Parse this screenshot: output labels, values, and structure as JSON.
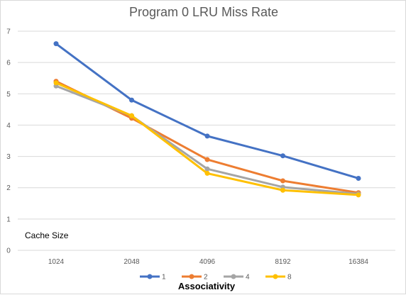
{
  "chart_data": {
    "type": "line",
    "title": "Program 0 LRU Miss Rate",
    "xlabel": "Associativity",
    "ylabel": "",
    "annotation": "Cache Size",
    "categories": [
      "1024",
      "2048",
      "4096",
      "8192",
      "16384"
    ],
    "ylim": [
      0,
      7
    ],
    "yticks": [
      "0",
      "1",
      "2",
      "3",
      "4",
      "5",
      "6",
      "7"
    ],
    "grid": true,
    "legend_position": "bottom",
    "series": [
      {
        "name": "1",
        "color": "#4472C4",
        "values": [
          6.6,
          4.8,
          3.65,
          3.02,
          2.3
        ]
      },
      {
        "name": "2",
        "color": "#ED7D31",
        "values": [
          5.4,
          4.22,
          2.9,
          2.22,
          1.84
        ]
      },
      {
        "name": "4",
        "color": "#A5A5A5",
        "values": [
          5.25,
          4.3,
          2.6,
          2.02,
          1.8
        ]
      },
      {
        "name": "8",
        "color": "#FFC000",
        "values": [
          5.35,
          4.3,
          2.46,
          1.92,
          1.77
        ]
      }
    ]
  }
}
